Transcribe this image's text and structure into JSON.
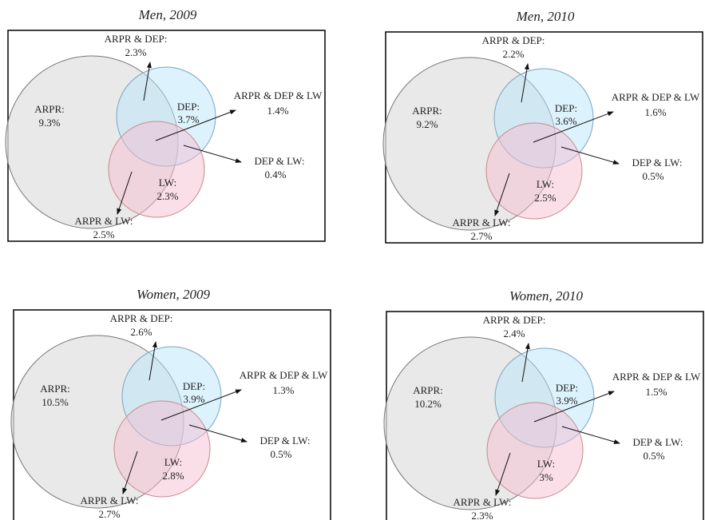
{
  "panels": [
    {
      "title": "Men, 2009",
      "regions": [
        {
          "label": "ARPR:",
          "value": "9.3%"
        },
        {
          "label": "DEP:",
          "value": "3.7%"
        },
        {
          "label": "LW:",
          "value": "2.3%"
        },
        {
          "label": "ARPR & DEP:",
          "value": "2.3%"
        },
        {
          "label": "ARPR & LW:",
          "value": "2.5%"
        },
        {
          "label": "DEP & LW:",
          "value": "0.4%"
        },
        {
          "label": "ARPR & DEP & LW",
          "value": "1.4%"
        }
      ]
    },
    {
      "title": "Men, 2010",
      "regions": [
        {
          "label": "ARPR:",
          "value": "9.2%"
        },
        {
          "label": "DEP:",
          "value": "3.6%"
        },
        {
          "label": "LW:",
          "value": "2.5%"
        },
        {
          "label": "ARPR & DEP:",
          "value": "2.2%"
        },
        {
          "label": "ARPR & LW:",
          "value": "2.7%"
        },
        {
          "label": "DEP & LW:",
          "value": "0.5%"
        },
        {
          "label": "ARPR & DEP & LW",
          "value": "1.6%"
        }
      ]
    },
    {
      "title": "Women, 2009",
      "regions": [
        {
          "label": "ARPR:",
          "value": "10.5%"
        },
        {
          "label": "DEP:",
          "value": "3.9%"
        },
        {
          "label": "LW:",
          "value": "2.8%"
        },
        {
          "label": "ARPR & DEP:",
          "value": "2.6%"
        },
        {
          "label": "ARPR & LW:",
          "value": "2.7%"
        },
        {
          "label": "DEP & LW:",
          "value": "0.5%"
        },
        {
          "label": "ARPR & DEP & LW",
          "value": "1.3%"
        }
      ]
    },
    {
      "title": "Women, 2010",
      "regions": [
        {
          "label": "ARPR:",
          "value": "10.2%"
        },
        {
          "label": "DEP:",
          "value": "3.9%"
        },
        {
          "label": "LW:",
          "value": "3%"
        },
        {
          "label": "ARPR & DEP:",
          "value": "2.4%"
        },
        {
          "label": "ARPR & LW:",
          "value": "2.3%"
        },
        {
          "label": "DEP & LW:",
          "value": "0.5%"
        },
        {
          "label": "ARPR & DEP & LW",
          "value": "1.5%"
        }
      ]
    }
  ]
}
